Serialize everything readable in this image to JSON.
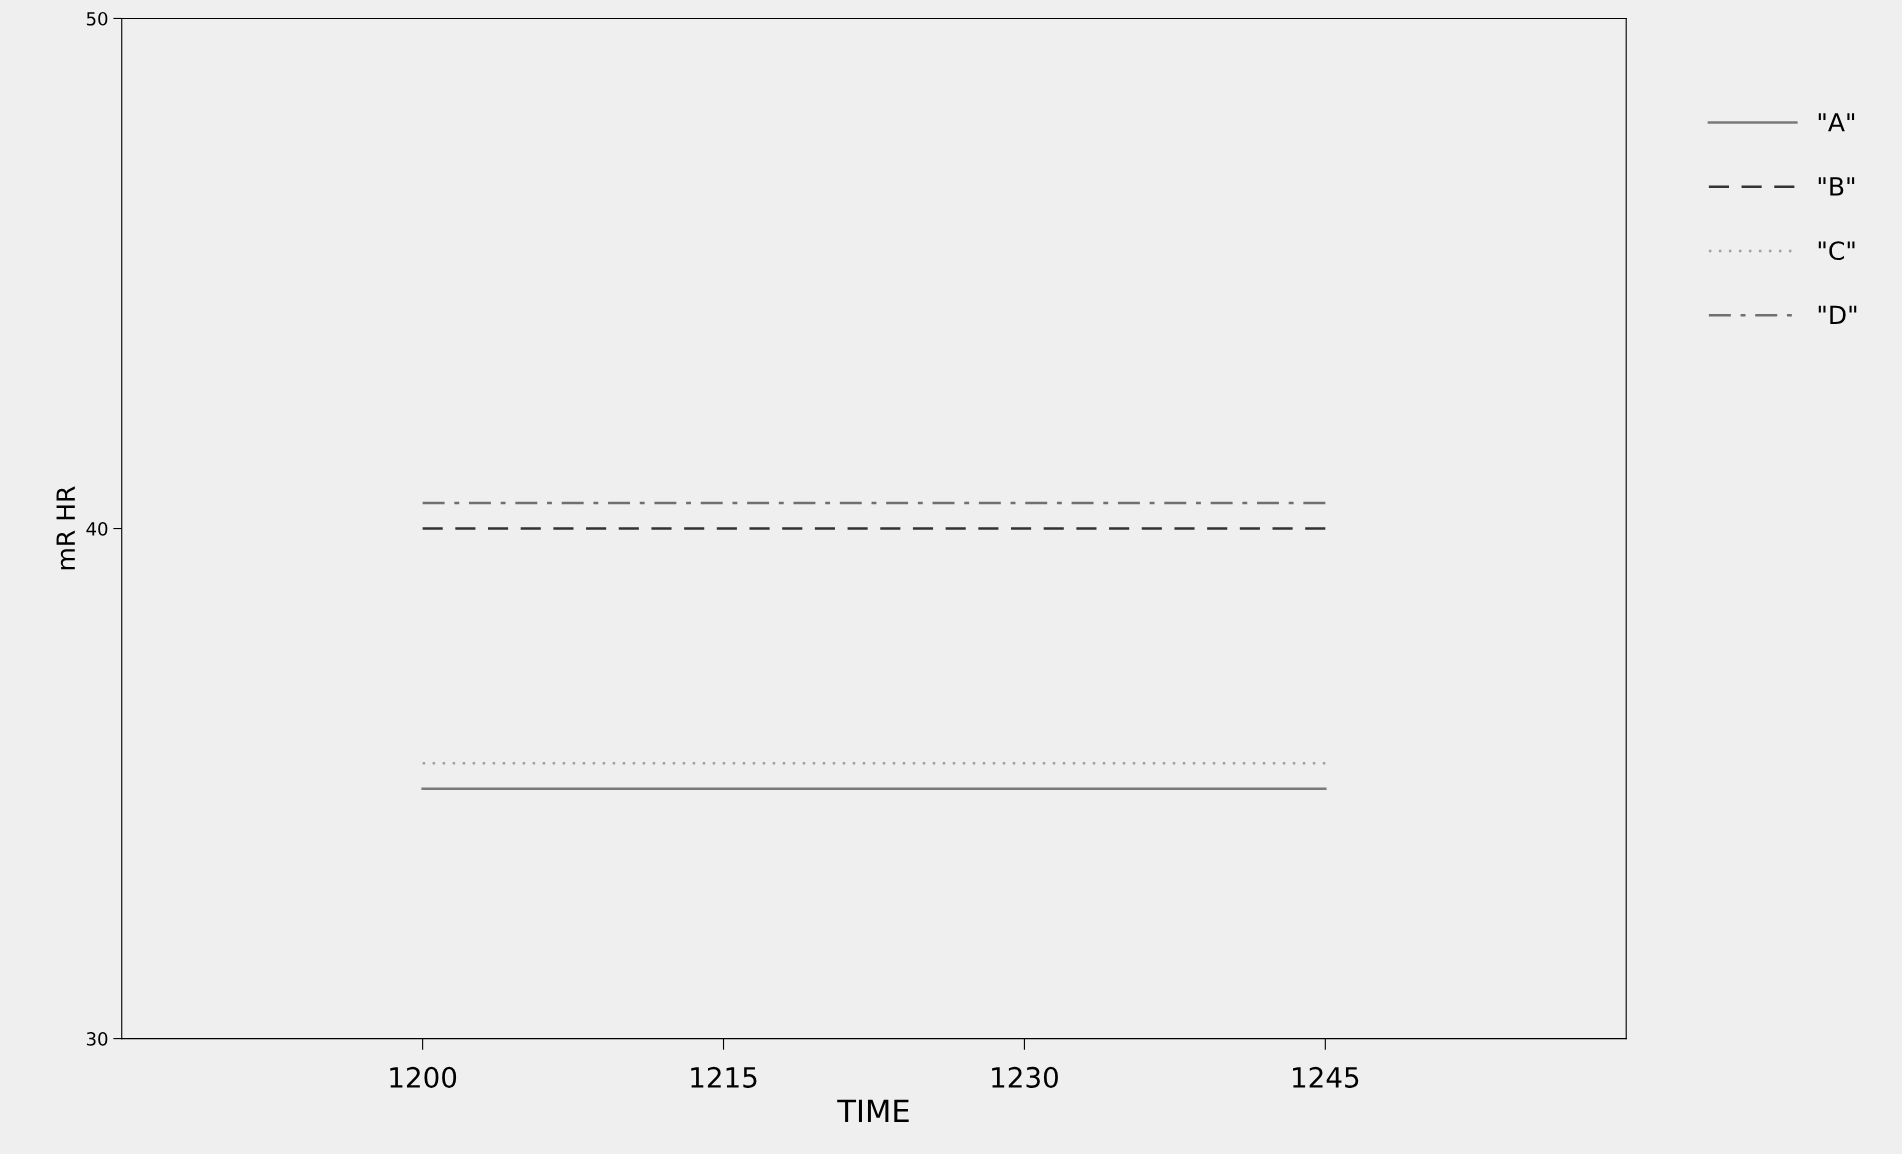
{
  "chart_data": {
    "type": "line",
    "xlabel": "TIME",
    "ylabel": "mR HR",
    "x": [
      1200,
      1245
    ],
    "series": [
      {
        "name": "\"A\"",
        "color": "#7a7a7a",
        "line_style": "solid",
        "values": [
          34.9,
          34.9
        ]
      },
      {
        "name": "\"B\"",
        "color": "#333333",
        "line_style": "dashed",
        "values": [
          40.0,
          40.0
        ]
      },
      {
        "name": "\"C\"",
        "color": "#a0a0a0",
        "line_style": "dotted",
        "values": [
          35.4,
          35.4
        ]
      },
      {
        "name": "\"D\"",
        "color": "#707070",
        "line_style": "dashdot",
        "values": [
          40.5,
          40.5
        ]
      }
    ],
    "xlim": [
      1185,
      1260
    ],
    "xticks": [
      1200,
      1215,
      1230,
      1245
    ],
    "ylim": [
      30,
      50
    ],
    "yticks": [
      30,
      40,
      50
    ],
    "grid": false,
    "legend": "top right",
    "marker": "none"
  }
}
